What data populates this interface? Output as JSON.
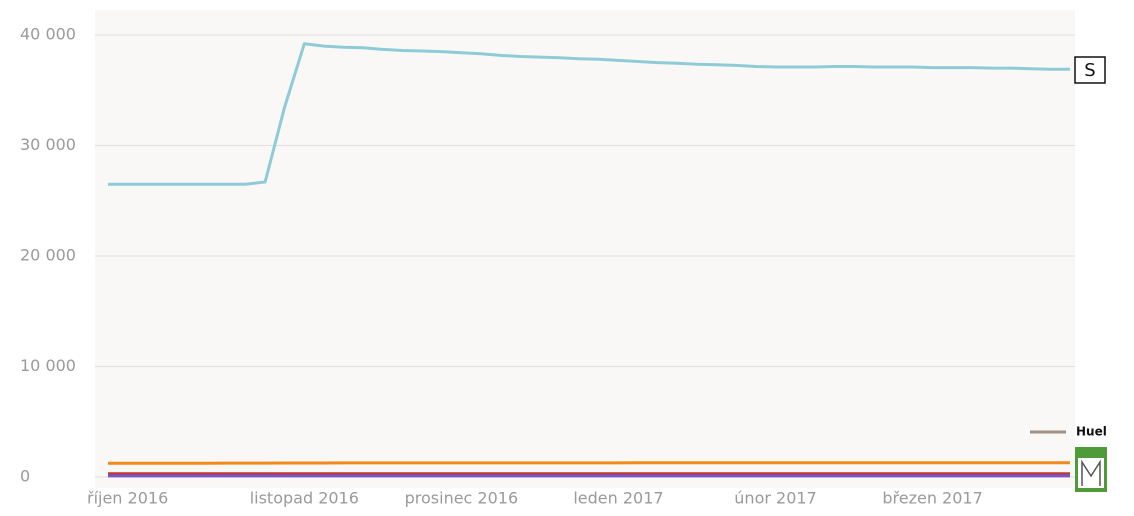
{
  "chart_data": {
    "type": "line",
    "categories": [
      null,
      "říjen 2016",
      null,
      null,
      null,
      null,
      null,
      null,
      null,
      null,
      "listopad 2016",
      null,
      null,
      null,
      null,
      null,
      null,
      null,
      "prosinec 2016",
      null,
      null,
      null,
      null,
      null,
      null,
      null,
      "leden 2017",
      null,
      null,
      null,
      null,
      null,
      null,
      null,
      "únor 2017",
      null,
      null,
      null,
      null,
      null,
      null,
      null,
      "březen 2017",
      null,
      null,
      null,
      null,
      null,
      null,
      null
    ],
    "series": [
      {
        "name": "S",
        "color": "#8fcbd6",
        "values": [
          26500,
          26500,
          26500,
          26500,
          26500,
          26500,
          26500,
          26500,
          26700,
          33500,
          39200,
          39000,
          38900,
          38850,
          38700,
          38600,
          38550,
          38500,
          38400,
          38300,
          38150,
          38050,
          38000,
          37950,
          37850,
          37800,
          37700,
          37600,
          37500,
          37450,
          37350,
          37300,
          37250,
          37150,
          37100,
          37100,
          37100,
          37150,
          37150,
          37100,
          37100,
          37100,
          37050,
          37050,
          37050,
          37000,
          37000,
          36950,
          36900,
          36900
        ]
      },
      {
        "color": "#f08a1c",
        "values": [
          1250,
          1250,
          1250,
          1250,
          1250,
          1250,
          1260,
          1260,
          1260,
          1270,
          1270,
          1270,
          1280,
          1280,
          1280,
          1280,
          1280,
          1280,
          1280,
          1280,
          1280,
          1280,
          1280,
          1280,
          1280,
          1280,
          1280,
          1290,
          1290,
          1290,
          1290,
          1290,
          1290,
          1290,
          1290,
          1290,
          1290,
          1290,
          1290,
          1290,
          1290,
          1290,
          1290,
          1290,
          1290,
          1290,
          1290,
          1290,
          1290,
          1290
        ]
      },
      {
        "name": "Huel",
        "color": "#a38f86",
        "values": [
          200,
          200,
          200,
          200,
          200,
          200,
          200,
          200,
          200,
          200,
          200,
          200,
          200,
          200,
          200,
          200,
          200,
          200,
          200,
          200,
          200,
          200,
          200,
          200,
          200,
          200,
          200,
          200,
          200,
          200,
          200,
          200,
          200,
          200,
          200,
          200,
          200,
          200,
          200,
          200,
          200,
          200,
          200,
          200,
          200,
          200,
          200,
          200,
          200,
          200
        ]
      },
      {
        "color": "#c0392b",
        "values": [
          300,
          300,
          300,
          300,
          300,
          300,
          300,
          300,
          300,
          300,
          300,
          300,
          300,
          300,
          300,
          300,
          300,
          300,
          300,
          300,
          300,
          300,
          300,
          300,
          300,
          300,
          300,
          300,
          300,
          300,
          300,
          300,
          300,
          300,
          300,
          300,
          300,
          300,
          300,
          300,
          300,
          300,
          300,
          300,
          300,
          300,
          300,
          300,
          300,
          300
        ]
      },
      {
        "color": "#7b52c7",
        "values": [
          100,
          100,
          100,
          100,
          100,
          100,
          100,
          100,
          100,
          100,
          100,
          100,
          100,
          100,
          100,
          100,
          100,
          100,
          100,
          100,
          100,
          100,
          100,
          100,
          100,
          100,
          100,
          100,
          100,
          100,
          100,
          100,
          100,
          100,
          100,
          100,
          100,
          100,
          100,
          100,
          100,
          100,
          100,
          100,
          100,
          100,
          100,
          100,
          100,
          100
        ]
      }
    ],
    "ylim": [
      0,
      40000
    ],
    "yticks": [
      0,
      {
        "value": 10000,
        "label": "10 000"
      },
      {
        "value": 20000,
        "label": "20 000"
      },
      {
        "value": 30000,
        "label": "30 000"
      },
      {
        "value": 40000,
        "label": "40 000"
      }
    ],
    "grid": true
  }
}
